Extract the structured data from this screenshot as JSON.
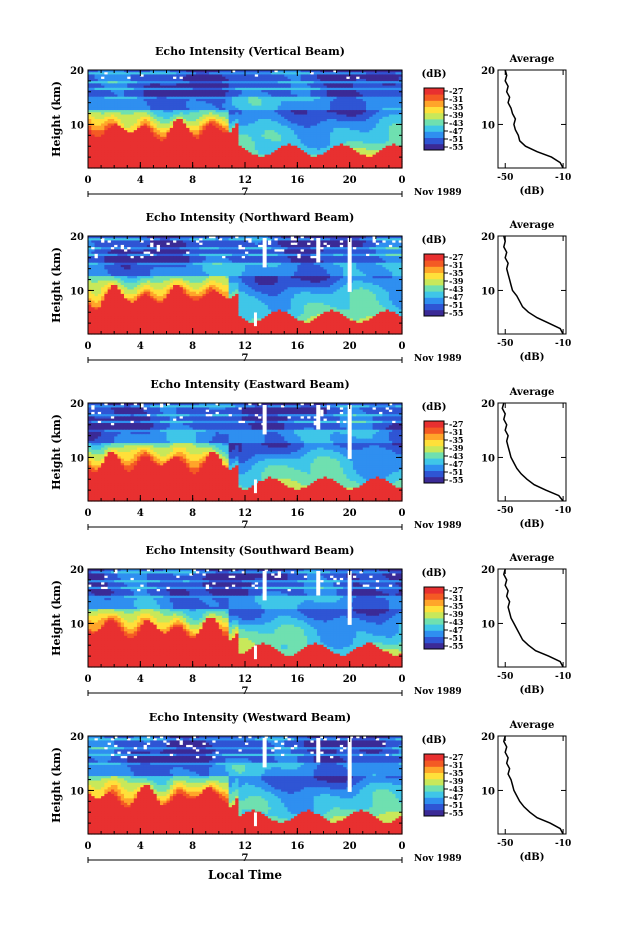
{
  "figure": {
    "xlabel": "Local Time",
    "colorbar_unit": "(dB)",
    "colorbar_ticks": [
      -27,
      -31,
      -35,
      -39,
      -43,
      -47,
      -51,
      -55
    ],
    "colormap": [
      "#3b2a96",
      "#2f55d4",
      "#2f8ff0",
      "#3fc6e8",
      "#6fe0b0",
      "#c8e85a",
      "#ffe03a",
      "#ffa52a",
      "#f45a24",
      "#e83030"
    ],
    "gap_color": "#ffffff"
  },
  "chart_data": [
    {
      "type": "heatmap",
      "title": "Echo Intensity (Vertical Beam)",
      "ylabel": "Height (km)",
      "x_ticks": [
        "0",
        "4",
        "8",
        "12",
        "16",
        "20",
        "0"
      ],
      "date_marker": "7",
      "date_label": "Nov 1989",
      "xlim": [
        0,
        24
      ],
      "ylim": [
        2,
        20
      ],
      "y_ticks": [
        10,
        20
      ],
      "average": {
        "title": "Average",
        "xlabel": "(dB)",
        "x_ticks": [
          -50,
          -10
        ],
        "xlim": [
          -55,
          -8
        ],
        "ylim": [
          2,
          20
        ],
        "y_ticks": [
          10,
          20
        ],
        "profile": [
          [
            2,
            -10
          ],
          [
            3,
            -12
          ],
          [
            4,
            -18
          ],
          [
            5,
            -28
          ],
          [
            6,
            -36
          ],
          [
            7,
            -40
          ],
          [
            8,
            -41
          ],
          [
            9,
            -43
          ],
          [
            10,
            -44
          ],
          [
            11,
            -43
          ],
          [
            12,
            -45
          ],
          [
            13,
            -46
          ],
          [
            14,
            -48
          ],
          [
            15,
            -47
          ],
          [
            16,
            -49
          ],
          [
            17,
            -48
          ],
          [
            18,
            -50
          ],
          [
            19,
            -49
          ],
          [
            20,
            -50
          ]
        ]
      }
    },
    {
      "type": "heatmap",
      "title": "Echo Intensity (Northward Beam)",
      "ylabel": "Height (km)",
      "x_ticks": [
        "0",
        "4",
        "8",
        "12",
        "16",
        "20",
        "0"
      ],
      "date_marker": "7",
      "date_label": "Nov 1989",
      "xlim": [
        0,
        24
      ],
      "ylim": [
        2,
        20
      ],
      "y_ticks": [
        10,
        20
      ],
      "average": {
        "title": "Average",
        "xlabel": "(dB)",
        "x_ticks": [
          -50,
          -10
        ],
        "xlim": [
          -55,
          -8
        ],
        "ylim": [
          2,
          20
        ],
        "y_ticks": [
          10,
          20
        ],
        "profile": [
          [
            2,
            -10
          ],
          [
            3,
            -12
          ],
          [
            4,
            -20
          ],
          [
            5,
            -28
          ],
          [
            6,
            -34
          ],
          [
            7,
            -38
          ],
          [
            8,
            -40
          ],
          [
            9,
            -42
          ],
          [
            10,
            -45
          ],
          [
            11,
            -46
          ],
          [
            12,
            -47
          ],
          [
            13,
            -48
          ],
          [
            14,
            -49
          ],
          [
            15,
            -48
          ],
          [
            16,
            -50
          ],
          [
            17,
            -49
          ],
          [
            18,
            -51
          ],
          [
            19,
            -50
          ],
          [
            20,
            -51
          ]
        ]
      }
    },
    {
      "type": "heatmap",
      "title": "Echo Intensity (Eastward Beam)",
      "ylabel": "Height (km)",
      "x_ticks": [
        "0",
        "4",
        "8",
        "12",
        "16",
        "20",
        "0"
      ],
      "date_marker": "7",
      "date_label": "Nov 1989",
      "xlim": [
        0,
        24
      ],
      "ylim": [
        2,
        20
      ],
      "y_ticks": [
        10,
        20
      ],
      "average": {
        "title": "Average",
        "xlabel": "(dB)",
        "x_ticks": [
          -50,
          -10
        ],
        "xlim": [
          -55,
          -8
        ],
        "ylim": [
          2,
          20
        ],
        "y_ticks": [
          10,
          20
        ],
        "profile": [
          [
            2,
            -10
          ],
          [
            3,
            -13
          ],
          [
            4,
            -22
          ],
          [
            5,
            -30
          ],
          [
            6,
            -35
          ],
          [
            7,
            -39
          ],
          [
            8,
            -42
          ],
          [
            9,
            -44
          ],
          [
            10,
            -46
          ],
          [
            11,
            -47
          ],
          [
            12,
            -48
          ],
          [
            13,
            -49
          ],
          [
            14,
            -48
          ],
          [
            15,
            -50
          ],
          [
            16,
            -49
          ],
          [
            17,
            -51
          ],
          [
            18,
            -50
          ],
          [
            19,
            -52
          ],
          [
            20,
            -51
          ]
        ]
      }
    },
    {
      "type": "heatmap",
      "title": "Echo Intensity (Southward Beam)",
      "ylabel": "Height (km)",
      "x_ticks": [
        "0",
        "4",
        "8",
        "12",
        "16",
        "20",
        "0"
      ],
      "date_marker": "7",
      "date_label": "Nov 1989",
      "xlim": [
        0,
        24
      ],
      "ylim": [
        2,
        20
      ],
      "y_ticks": [
        10,
        20
      ],
      "average": {
        "title": "Average",
        "xlabel": "(dB)",
        "x_ticks": [
          -50,
          -10
        ],
        "xlim": [
          -55,
          -8
        ],
        "ylim": [
          2,
          20
        ],
        "y_ticks": [
          10,
          20
        ],
        "profile": [
          [
            2,
            -10
          ],
          [
            3,
            -12
          ],
          [
            4,
            -20
          ],
          [
            5,
            -29
          ],
          [
            6,
            -34
          ],
          [
            7,
            -38
          ],
          [
            8,
            -40
          ],
          [
            9,
            -42
          ],
          [
            10,
            -44
          ],
          [
            11,
            -46
          ],
          [
            12,
            -47
          ],
          [
            13,
            -48
          ],
          [
            14,
            -47
          ],
          [
            15,
            -49
          ],
          [
            16,
            -48
          ],
          [
            17,
            -50
          ],
          [
            18,
            -49
          ],
          [
            19,
            -51
          ],
          [
            20,
            -50
          ]
        ]
      }
    },
    {
      "type": "heatmap",
      "title": "Echo Intensity (Westward Beam)",
      "ylabel": "Height (km)",
      "x_ticks": [
        "0",
        "4",
        "8",
        "12",
        "16",
        "20",
        "0"
      ],
      "date_marker": "7",
      "date_label": "Nov 1989",
      "xlim": [
        0,
        24
      ],
      "ylim": [
        2,
        20
      ],
      "y_ticks": [
        10,
        20
      ],
      "average": {
        "title": "Average",
        "xlabel": "(dB)",
        "x_ticks": [
          -50,
          -10
        ],
        "xlim": [
          -55,
          -8
        ],
        "ylim": [
          2,
          20
        ],
        "y_ticks": [
          10,
          20
        ],
        "profile": [
          [
            2,
            -10
          ],
          [
            3,
            -12
          ],
          [
            4,
            -19
          ],
          [
            5,
            -28
          ],
          [
            6,
            -33
          ],
          [
            7,
            -37
          ],
          [
            8,
            -40
          ],
          [
            9,
            -42
          ],
          [
            10,
            -44
          ],
          [
            11,
            -45
          ],
          [
            12,
            -46
          ],
          [
            13,
            -48
          ],
          [
            14,
            -47
          ],
          [
            15,
            -49
          ],
          [
            16,
            -48
          ],
          [
            17,
            -50
          ],
          [
            18,
            -49
          ],
          [
            19,
            -51
          ],
          [
            20,
            -50
          ]
        ]
      }
    }
  ]
}
